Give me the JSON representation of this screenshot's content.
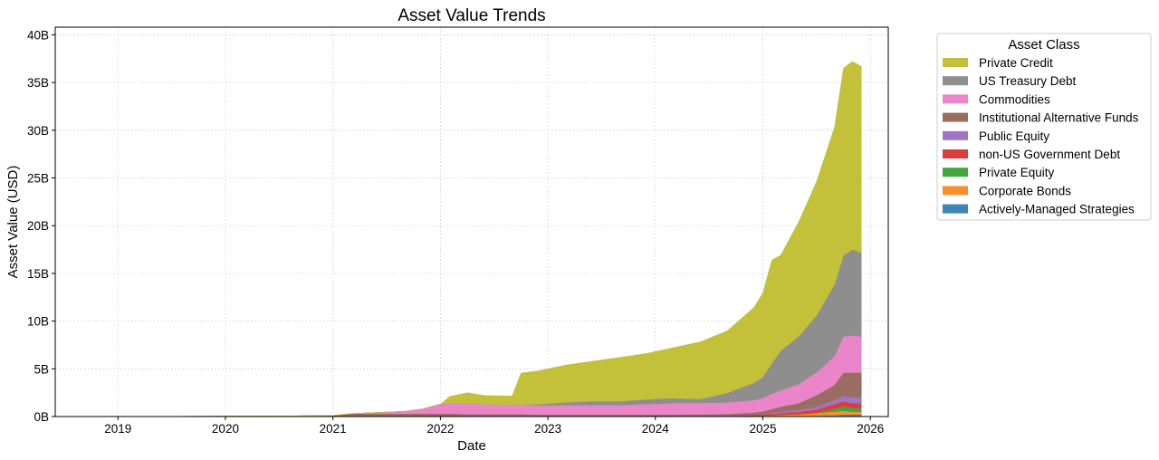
{
  "chart_data": {
    "type": "area",
    "stacked": true,
    "title": "Asset Value Trends",
    "xlabel": "Date",
    "ylabel": "Asset Value (USD)",
    "x_ticks": [
      "2019",
      "2020",
      "2021",
      "2022",
      "2023",
      "2024",
      "2025",
      "2026"
    ],
    "y_ticks": [
      "0B",
      "5B",
      "10B",
      "15B",
      "20B",
      "25B",
      "30B",
      "35B",
      "40B"
    ],
    "xlim": [
      "2018-06",
      "2026-03"
    ],
    "ylim": [
      0,
      40.8
    ],
    "y_units": "billions USD",
    "grid": true,
    "legend": {
      "title": "Asset Class",
      "placement": "outside-right"
    },
    "x": [
      "2018-08",
      "2019-06",
      "2020-06",
      "2021-01",
      "2021-03",
      "2021-09",
      "2021-11",
      "2022-01",
      "2022-02",
      "2022-04",
      "2022-06",
      "2022-09",
      "2022-10",
      "2022-12",
      "2023-03",
      "2023-06",
      "2023-09",
      "2023-12",
      "2024-03",
      "2024-06",
      "2024-09",
      "2024-12",
      "2025-01",
      "2025-02",
      "2025-03",
      "2025-05",
      "2025-07",
      "2025-09",
      "2025-10",
      "2025-11",
      "2025-12"
    ],
    "series": [
      {
        "name": "Actively-Managed Strategies",
        "color": "#3a86b8",
        "values": [
          0,
          0,
          0,
          0,
          0,
          0,
          0,
          0,
          0,
          0,
          0,
          0,
          0,
          0,
          0,
          0,
          0,
          0,
          0,
          0,
          0,
          0,
          0,
          0.02,
          0.03,
          0.05,
          0.08,
          0.12,
          0.2,
          0.2,
          0.2
        ]
      },
      {
        "name": "Corporate Bonds",
        "color": "#f88f2a",
        "values": [
          0,
          0,
          0,
          0,
          0,
          0,
          0,
          0,
          0,
          0,
          0,
          0,
          0,
          0,
          0,
          0,
          0,
          0,
          0.02,
          0.03,
          0.05,
          0.08,
          0.1,
          0.12,
          0.15,
          0.2,
          0.3,
          0.4,
          0.4,
          0.3,
          0.3
        ]
      },
      {
        "name": "Private Equity",
        "color": "#42a63f",
        "values": [
          0,
          0,
          0,
          0,
          0,
          0,
          0,
          0,
          0,
          0,
          0,
          0,
          0,
          0,
          0,
          0,
          0,
          0,
          0,
          0,
          0,
          0,
          0,
          0,
          0,
          0,
          0,
          0.3,
          0.5,
          0.4,
          0.4
        ]
      },
      {
        "name": "non-US Government Debt",
        "color": "#dd3d3c",
        "values": [
          0,
          0,
          0,
          0,
          0,
          0,
          0,
          0,
          0,
          0,
          0,
          0,
          0,
          0,
          0,
          0,
          0,
          0,
          0,
          0,
          0.02,
          0.05,
          0.1,
          0.15,
          0.2,
          0.25,
          0.35,
          0.5,
          0.5,
          0.5,
          0.5
        ]
      },
      {
        "name": "Public Equity",
        "color": "#9e76c5",
        "values": [
          0,
          0,
          0,
          0,
          0,
          0,
          0,
          0,
          0,
          0,
          0,
          0,
          0,
          0,
          0,
          0,
          0,
          0,
          0,
          0,
          0,
          0,
          0.05,
          0.1,
          0.15,
          0.2,
          0.3,
          0.4,
          0.6,
          0.6,
          0.6
        ]
      },
      {
        "name": "Institutional Alternative Funds",
        "color": "#9b6c60",
        "values": [
          0,
          0.02,
          0.05,
          0.1,
          0.3,
          0.3,
          0.3,
          0.3,
          0.3,
          0.25,
          0.25,
          0.25,
          0.25,
          0.2,
          0.2,
          0.2,
          0.2,
          0.2,
          0.2,
          0.2,
          0.2,
          0.3,
          0.3,
          0.4,
          0.5,
          0.7,
          1.2,
          1.6,
          2.4,
          2.6,
          2.6
        ]
      },
      {
        "name": "Commodities",
        "color": "#e985c8",
        "values": [
          0,
          0,
          0,
          0,
          0,
          0.25,
          0.5,
          1.0,
          1.1,
          1.15,
          1.05,
          1.0,
          1.0,
          1.0,
          1.0,
          1.0,
          1.0,
          1.1,
          1.2,
          1.2,
          1.2,
          1.3,
          1.4,
          1.6,
          1.7,
          2.0,
          2.4,
          3.0,
          3.8,
          3.9,
          3.8
        ]
      },
      {
        "name": "US Treasury Debt",
        "color": "#8e8e8e",
        "values": [
          0,
          0,
          0,
          0,
          0,
          0,
          0,
          0,
          0,
          0,
          0,
          0,
          0,
          0.1,
          0.3,
          0.4,
          0.4,
          0.5,
          0.5,
          0.4,
          1.0,
          1.8,
          2.2,
          3.2,
          4.2,
          5.0,
          6.0,
          7.5,
          8.5,
          9.0,
          8.8
        ]
      },
      {
        "name": "Private Credit",
        "color": "#c3c13a",
        "values": [
          0,
          0,
          0,
          0,
          0,
          0,
          0,
          0,
          0.7,
          1.1,
          0.9,
          0.9,
          3.3,
          3.5,
          3.9,
          4.2,
          4.6,
          4.8,
          5.3,
          6.0,
          6.5,
          7.9,
          8.8,
          10.8,
          10.0,
          12.0,
          14.0,
          16.5,
          19.6,
          19.7,
          19.5
        ]
      }
    ]
  }
}
